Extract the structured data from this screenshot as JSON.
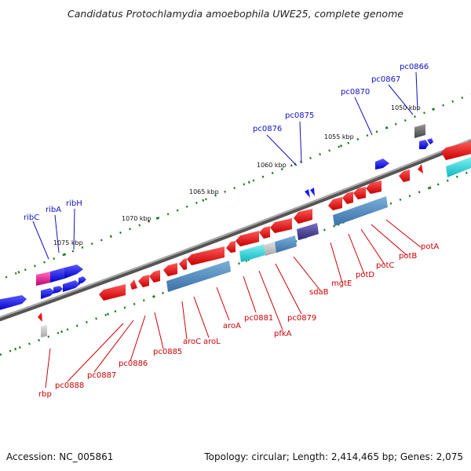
{
  "title": "Candidatus Protochlamydia amoebophila UWE25, complete genome",
  "footer": {
    "accession": "Accession: NC_005861",
    "topology": "Topology: circular; Length: 2,414,465 bp; Genes: 2,075"
  },
  "scale_ticks": [
    "1050 kbp",
    "1055 kbp",
    "1060 kbp",
    "1065 kbp",
    "1070 kbp",
    "1075 kbp"
  ],
  "genes_forward": [
    "pc0866",
    "pc0867",
    "pc0870",
    "pc0875",
    "pc0876",
    "ribH",
    "ribA",
    "ribC"
  ],
  "genes_reverse": [
    "potA",
    "potB",
    "potC",
    "potD",
    "mgtE",
    "sdaB",
    "pc0879",
    "pfkA",
    "pc0881",
    "aroA",
    "aroL",
    "aroC",
    "pc0885",
    "pc0886",
    "pc0887",
    "pc0888",
    "rbp"
  ],
  "colors": {
    "forward": "#1a1aee",
    "reverse": "#ee1111",
    "magenta": "#e0208c",
    "steel": "#5090c0",
    "cyan": "#20d0d8",
    "purple": "#4a3f90",
    "grey": "#666666",
    "backbone": "#888888",
    "scale_dots": "#1a7a1a"
  }
}
